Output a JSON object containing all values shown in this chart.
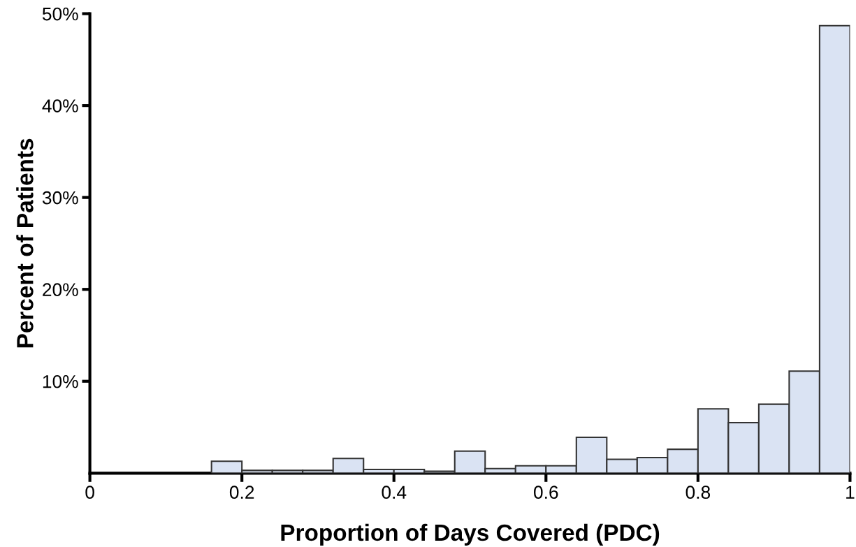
{
  "chart_data": {
    "type": "histogram",
    "xlabel": "Proportion of Days Covered (PDC)",
    "ylabel": "Percent of Patients",
    "bins": [
      0.16,
      0.2,
      0.24,
      0.28,
      0.32,
      0.36,
      0.4,
      0.44,
      0.48,
      0.52,
      0.56,
      0.6,
      0.64,
      0.68,
      0.72,
      0.76,
      0.8,
      0.84,
      0.88,
      0.92,
      0.96,
      1.0
    ],
    "values": [
      1.3,
      0.3,
      0.3,
      0.3,
      1.6,
      0.4,
      0.4,
      0.2,
      2.4,
      0.5,
      0.8,
      0.8,
      3.9,
      1.5,
      1.7,
      2.6,
      7.0,
      5.5,
      7.5,
      11.1,
      48.7
    ],
    "color": "#dae3f3",
    "xlim": [
      0,
      1
    ],
    "xticks": [
      0,
      0.2,
      0.4,
      0.6,
      0.8,
      1
    ],
    "ylim": [
      0,
      50
    ],
    "yticks": [
      {
        "value": 10,
        "label": "10%"
      },
      {
        "value": 20,
        "label": "20%"
      },
      {
        "value": 30,
        "label": "30%"
      },
      {
        "value": 40,
        "label": "40%"
      },
      {
        "value": 50,
        "label": "50%"
      }
    ],
    "grid": false,
    "legend": false
  }
}
